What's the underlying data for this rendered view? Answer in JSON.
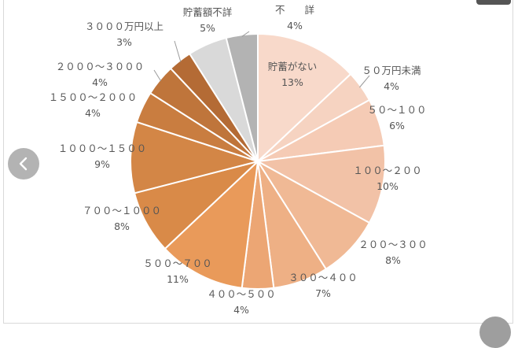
{
  "chart_data": {
    "type": "pie",
    "title": "",
    "start": "top",
    "direction": "clockwise",
    "slices": [
      {
        "line1": "貯蓄がない",
        "line2": "13%",
        "value": 13,
        "color": "#f8d9ca",
        "label_inside": true
      },
      {
        "line1": "５０万円未満",
        "line2": "4%",
        "value": 4,
        "color": "#f6d3c1"
      },
      {
        "line1": "５０～１００",
        "line2": "6%",
        "value": 6,
        "color": "#f5cbb5"
      },
      {
        "line1": "１００～２００",
        "line2": "10%",
        "value": 10,
        "color": "#f2c2a7"
      },
      {
        "line1": "２００～３００",
        "line2": "8%",
        "value": 8,
        "color": "#f0b995"
      },
      {
        "line1": "３００～４００",
        "line2": "7%",
        "value": 7,
        "color": "#eeb085"
      },
      {
        "line1": "４００～５００",
        "line2": "4%",
        "value": 4,
        "color": "#eca674"
      },
      {
        "line1": "５００～７００",
        "line2": "11%",
        "value": 11,
        "color": "#e99a5a"
      },
      {
        "line1": "７００～１０００",
        "line2": "8%",
        "value": 8,
        "color": "#d98a48"
      },
      {
        "line1": "１０００～１５００",
        "line2": "9%",
        "value": 9,
        "color": "#d38646"
      },
      {
        "line1": "１５００～２０００",
        "line2": "4%",
        "value": 4,
        "color": "#c97d40"
      },
      {
        "line1": "２０００～３０００",
        "line2": "4%",
        "value": 4,
        "color": "#bf753b"
      },
      {
        "line1": "３０００万円以上",
        "line2": "3%",
        "value": 3,
        "color": "#b46b35"
      },
      {
        "line1": "貯蓄額不詳",
        "line2": "5%",
        "value": 5,
        "color": "#d9d9d9"
      },
      {
        "line1": "不　　詳",
        "line2": "4%",
        "value": 4,
        "color": "#b3b3b3"
      }
    ]
  },
  "icons": {
    "prev": "chevron-left-icon"
  }
}
